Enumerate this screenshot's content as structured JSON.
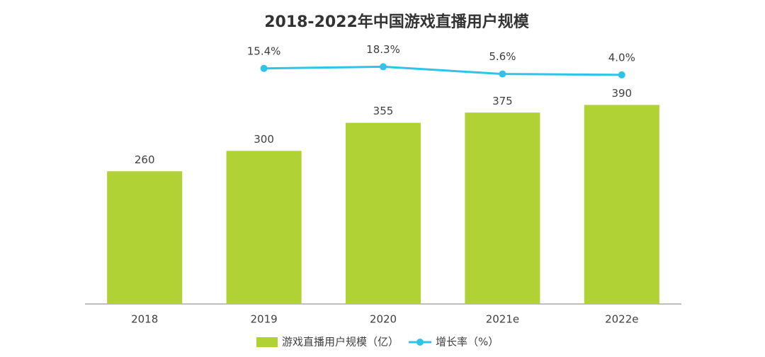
{
  "chart_data": {
    "type": "bar",
    "title": "2018-2022年中国游戏直播用户规模",
    "categories": [
      "2018",
      "2019",
      "2020",
      "2021e",
      "2022e"
    ],
    "series": [
      {
        "name": "游戏直播用户规模（亿）",
        "type": "bar",
        "color": "#b0d235",
        "values": [
          260,
          300,
          355,
          375,
          390
        ]
      },
      {
        "name": "增长率（%）",
        "type": "line",
        "axis": "y2",
        "color": "#2ec4e8",
        "values": [
          null,
          15.4,
          18.3,
          5.6,
          4.0
        ],
        "value_labels": [
          null,
          "15.4%",
          "18.3%",
          "5.6%",
          "4.0%"
        ]
      }
    ],
    "ylim": [
      0,
      500
    ],
    "y2lim": [
      -400,
      50
    ],
    "legend": "bottom"
  }
}
